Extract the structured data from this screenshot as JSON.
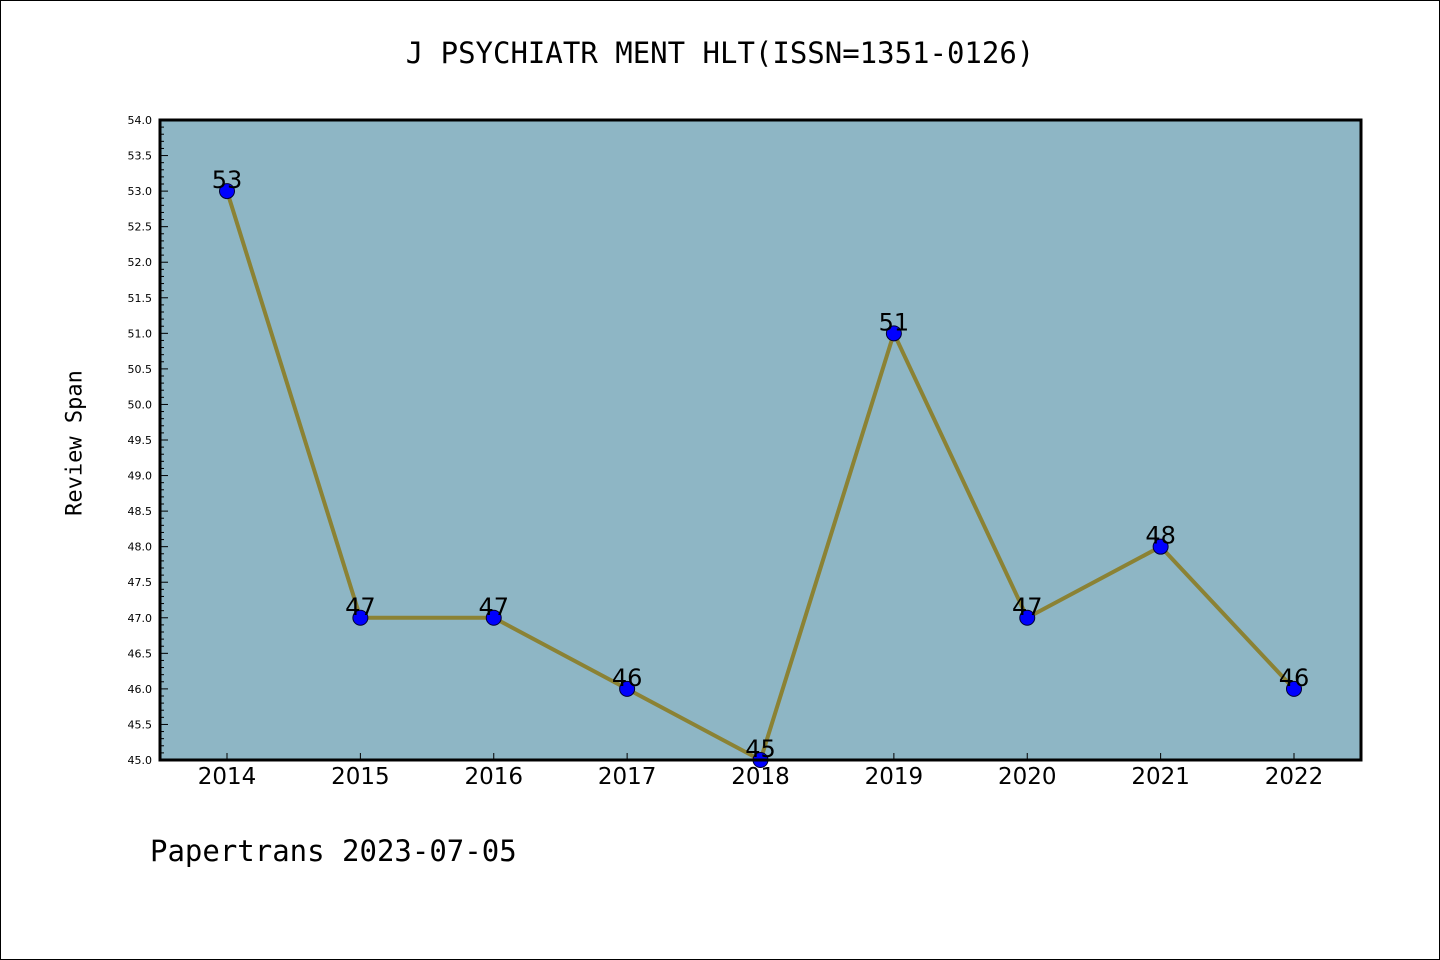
{
  "title": "J PSYCHIATR MENT HLT(ISSN=1351-0126)",
  "footer": "Papertrans 2023-07-05",
  "chart_data": {
    "type": "line",
    "title": "J PSYCHIATR MENT HLT(ISSN=1351-0126)",
    "xlabel": "",
    "ylabel": "Review Span",
    "x": [
      "2014",
      "2015",
      "2016",
      "2017",
      "2018",
      "2019",
      "2020",
      "2021",
      "2022"
    ],
    "series": [
      {
        "values": [
          53,
          47,
          47,
          46,
          45,
          51,
          47,
          48,
          46
        ]
      }
    ],
    "data_labels": [
      "53",
      "47",
      "47",
      "46",
      "45",
      "51",
      "47",
      "48",
      "46"
    ],
    "ylim": [
      45.0,
      54.0
    ],
    "y_ticks": [
      "45.0",
      "45.5",
      "46.0",
      "46.5",
      "47.0",
      "47.5",
      "48.0",
      "48.5",
      "49.0",
      "49.5",
      "50.0",
      "50.5",
      "51.0",
      "51.5",
      "52.0",
      "52.5",
      "53.0",
      "53.5",
      "54.0"
    ],
    "grid": false,
    "colors": {
      "plot_background": "#8eb6c5",
      "line": "#8b8234",
      "marker_fill": "#0000ff",
      "marker_edge": "#000033"
    }
  }
}
